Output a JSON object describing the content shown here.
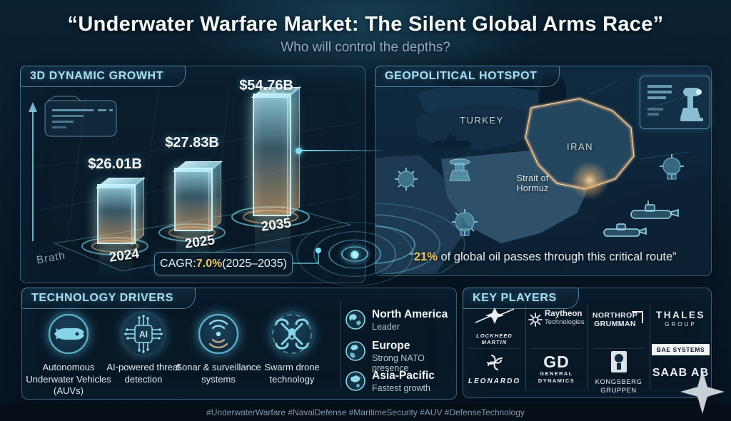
{
  "header": {
    "title": "“Underwater Warfare Market: The Silent Global Arms Race”",
    "subtitle": "Who will control the depths?"
  },
  "growth_panel": {
    "title": "3D DYNAMIC GROWHT",
    "axis_caption": "Brath",
    "cagr_label": "CAGR: ",
    "cagr_value": "7.0%",
    "cagr_period": " (2025–2035)"
  },
  "chart_data": {
    "type": "bar",
    "title": "3D DYNAMIC GROWHT",
    "categories": [
      "2024",
      "2025",
      "2035"
    ],
    "values": [
      26.01,
      27.83,
      54.76
    ],
    "value_labels": [
      "$26.01B",
      "$27.83B",
      "$54.76B"
    ],
    "unit": "USD billions",
    "cagr": "CAGR: 7.0% (2025–2035)",
    "xlabel": "",
    "ylabel": "",
    "ylim": [
      0,
      60
    ],
    "grid": true,
    "style": "3D glowing bars on dark sonar platform"
  },
  "map_panel": {
    "title": "GEOPOLITICAL HOTSPOT",
    "turkey_label": "TURKEY",
    "iran_label": "IRAN",
    "strait_line1": "Strait of",
    "strait_line2": "Hormuz",
    "quote_open": "“",
    "quote_highlight": "21%",
    "quote_rest": " of global oil passes through this critical route”"
  },
  "tech_panel": {
    "title": "TECHNOLOGY DRIVERS",
    "ai_text": "AI",
    "items": [
      {
        "icon": "auv-icon",
        "label": "Autonomous Underwater Vehicles (AUVs)"
      },
      {
        "icon": "ai-chip-icon",
        "label": "AI-powered threat detection"
      },
      {
        "icon": "sonar-icon",
        "label": "Sonar & surveillance systems"
      },
      {
        "icon": "swarm-drone-icon",
        "label": "Swarm drone technology"
      }
    ],
    "regions": [
      {
        "icon": "globe-americas-icon",
        "name": "North America",
        "desc": "Leader"
      },
      {
        "icon": "globe-europe-icon",
        "name": "Europe",
        "desc": "Strong NATO presence"
      },
      {
        "icon": "globe-asia-icon",
        "name": "Asia-Pacific",
        "desc": "Fastest growth"
      }
    ]
  },
  "players_panel": {
    "title": "KEY PLAYERS",
    "items": [
      {
        "company": "Lockheed Martin",
        "wordmark": "LOCKHEED MARTIN"
      },
      {
        "company": "Raytheon Technologies",
        "line1": "Raytheon",
        "line2": "Technologies"
      },
      {
        "company": "Northrop Grumman",
        "line1": "NORTHROP",
        "line2": "GRUMMAN"
      },
      {
        "company": "Thales Group",
        "line1": "THALES",
        "line2": "GROUP"
      },
      {
        "company": "BAE Systems",
        "wordmark": "BAE SYSTEMS"
      },
      {
        "company": "Leonardo",
        "wordmark": "LEONARDO"
      },
      {
        "company": "General Dynamics",
        "monogram": "GD",
        "line1": "GENERAL",
        "line2": "DYNAMICS"
      },
      {
        "company": "Kongsberg Gruppen",
        "line1": "KONGSBERG",
        "line2": "GRUPPEN"
      },
      {
        "company": "Saab AB",
        "wordmark": "SAAB AB"
      }
    ]
  },
  "footer": {
    "hashtags": "#UnderwaterWarfare #NavalDefense #MaritimeSecurity #AUV #DefenseTechnology"
  },
  "colors": {
    "accent_cyan": "#7fd2e6",
    "gold": "#ecc46a",
    "bar_top": "#aaeefc",
    "bar_bottom": "#eeb676",
    "background": "#081726"
  }
}
